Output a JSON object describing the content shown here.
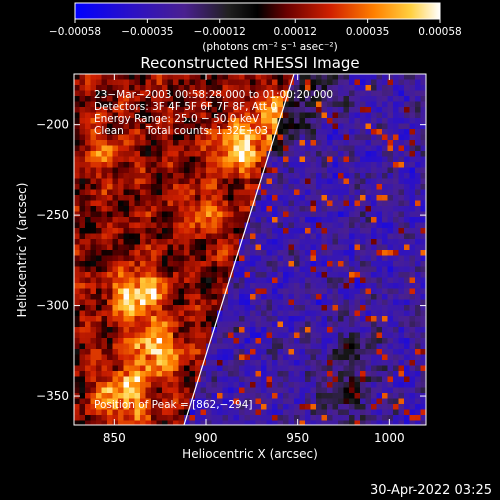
{
  "footer": {
    "timestamp": "30-Apr-2022 03:25"
  },
  "chart_data": {
    "type": "heatmap",
    "title": "Reconstructed RHESSI Image",
    "xlabel": "Heliocentric X (arcsec)",
    "ylabel": "Heliocentric Y (arcsec)",
    "xlim": [
      828,
      1020
    ],
    "ylim": [
      -366,
      -172
    ],
    "x_ticks": [
      850,
      900,
      950,
      1000
    ],
    "y_ticks": [
      -200,
      -250,
      -300,
      -350
    ],
    "x_tick_labels": [
      "850",
      "900",
      "950",
      "1000"
    ],
    "y_tick_labels": [
      "−200",
      "−250",
      "−300",
      "−350"
    ],
    "colorbar": {
      "range": [
        -0.00058,
        0.00058
      ],
      "ticks": [
        -0.00058,
        -0.00035,
        -0.00012,
        0.00012,
        0.00035,
        0.00058
      ],
      "tick_labels": [
        "−0.00058",
        "−0.00035",
        "−0.00012",
        "0.00012",
        "0.00035",
        "0.00058"
      ],
      "unit_label": "(photons cm⁻² s⁻¹ asec⁻²)"
    },
    "annotations": {
      "time_range": "23−Mar−2003 00:58:28.000 to 01:00:20.000",
      "detectors": "Detectors: 3F 4F 5F 6F 7F 8F, Att 0",
      "energy": "Energy Range: 25.0 − 50.0 keV",
      "method": "Clean",
      "counts": "Total counts: 1.32E+03",
      "peak": "Position of Peak = [862,−294]"
    },
    "limb_line": [
      [
        888,
        -366
      ],
      [
        948,
        -172
      ]
    ],
    "peak_position": [
      862,
      -294
    ],
    "bright_regions": [
      {
        "x": 862,
        "y": -294,
        "intensity": 0.00052
      },
      {
        "x": 872,
        "y": -325,
        "intensity": 0.0005
      },
      {
        "x": 855,
        "y": -350,
        "intensity": 0.00048
      },
      {
        "x": 918,
        "y": -213,
        "intensity": 0.00048
      },
      {
        "x": 940,
        "y": -196,
        "intensity": 0.00045
      },
      {
        "x": 898,
        "y": -250,
        "intensity": 0.0003
      },
      {
        "x": 845,
        "y": -215,
        "intensity": 0.00028
      },
      {
        "x": 962,
        "y": -178,
        "intensity": 0.0003
      },
      {
        "x": 980,
        "y": -325,
        "intensity": 0.00028
      },
      {
        "x": 975,
        "y": -350,
        "intensity": 0.00035
      }
    ]
  }
}
